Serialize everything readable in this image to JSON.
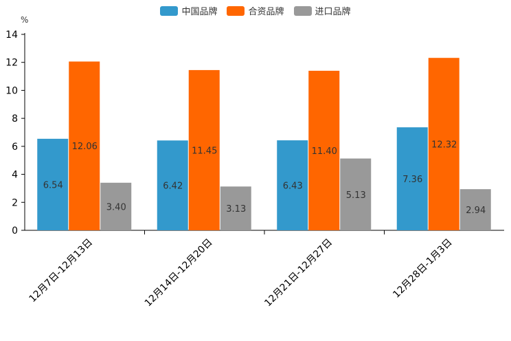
{
  "chart_data": {
    "type": "bar",
    "title": "",
    "ylabel": "%",
    "xlabel": "",
    "ylim": [
      0,
      14
    ],
    "yticks": [
      0,
      2,
      4,
      6,
      8,
      10,
      12,
      14
    ],
    "legend_position": "top-center",
    "categories": [
      "12月7日-12月13日",
      "12月14日-12月20日",
      "12月21日-12月27日",
      "12月28日-1月3日"
    ],
    "series": [
      {
        "name": "中国品牌",
        "color": "#3399cc",
        "values": [
          6.54,
          6.42,
          6.43,
          7.36
        ],
        "labels": [
          "6.54",
          "6.42",
          "6.43",
          "7.36"
        ]
      },
      {
        "name": "合资品牌",
        "color": "#ff6600",
        "values": [
          12.06,
          11.45,
          11.4,
          12.32
        ],
        "labels": [
          "12.06",
          "11.45",
          "11.40",
          "12.32"
        ]
      },
      {
        "name": "进口品牌",
        "color": "#999999",
        "values": [
          3.4,
          3.13,
          5.13,
          2.94
        ],
        "labels": [
          "3.40",
          "3.13",
          "5.13",
          "2.94"
        ]
      }
    ]
  }
}
